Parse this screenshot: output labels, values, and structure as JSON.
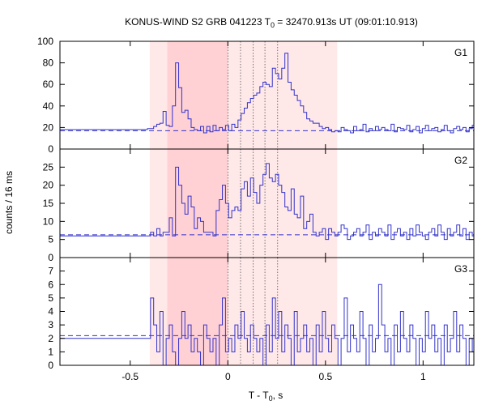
{
  "chart_data": {
    "type": "line",
    "title_prefix": "KONUS-WIND S2 GRB 041223 T",
    "title_sub": "0",
    "title_suffix": " = 32470.913s UT (09:01:10.913)",
    "xlabel_prefix": "T - T",
    "xlabel_sub": "0",
    "xlabel_suffix": ", s",
    "ylabel": "counts / 16 ms",
    "xlim": [
      -0.86,
      1.26
    ],
    "xticks": [
      -0.5,
      0,
      0.5,
      1
    ],
    "xtick_labels": [
      "-0.5",
      "0",
      "0.5",
      "1"
    ],
    "shaded_regions": [
      {
        "from": -0.4,
        "to": 0.56,
        "color": "#ffe8e8"
      },
      {
        "from": -0.31,
        "to": 0.0,
        "color": "#ffd0d4"
      }
    ],
    "vertical_lines_x": [
      0.065,
      0.13,
      0.19,
      0.255
    ],
    "panels": [
      {
        "name": "G1",
        "ylim": [
          0,
          100
        ],
        "yticks": [
          0,
          20,
          40,
          60,
          80,
          100
        ],
        "background_level": 17,
        "step_x0": -0.86,
        "step_dx": 0.016,
        "values": [
          18,
          18,
          18,
          18,
          18,
          18,
          18,
          18,
          18,
          18,
          18,
          18,
          18,
          18,
          18,
          18,
          18,
          18,
          18,
          18,
          18,
          18,
          18,
          18,
          18,
          18,
          18,
          18,
          19,
          19,
          21,
          23,
          24,
          35,
          22,
          21,
          40,
          80,
          57,
          34,
          36,
          28,
          20,
          18,
          17,
          21,
          15,
          21,
          16,
          22,
          17,
          20,
          18,
          22,
          17,
          23,
          20,
          27,
          33,
          38,
          43,
          47,
          50,
          52,
          58,
          62,
          60,
          58,
          75,
          70,
          65,
          75,
          89,
          62,
          55,
          50,
          45,
          40,
          34,
          28,
          26,
          24,
          24,
          21,
          19,
          20,
          18,
          16,
          17,
          16,
          20,
          18,
          17,
          15,
          21,
          17,
          18,
          23,
          16,
          19,
          17,
          21,
          18,
          20,
          18,
          17,
          23,
          16,
          20,
          19,
          18,
          22,
          16,
          18,
          21,
          15,
          19,
          22,
          17,
          19,
          20,
          16,
          18,
          22,
          17,
          15,
          19,
          21,
          18,
          20,
          16,
          19,
          22,
          17,
          18,
          20,
          15,
          19,
          21,
          16,
          18,
          17,
          20,
          19,
          16,
          22
        ]
      },
      {
        "name": "G2",
        "ylim": [
          0,
          30
        ],
        "yticks": [
          0,
          5,
          10,
          15,
          20,
          25
        ],
        "background_level": 6.3,
        "step_x0": -0.86,
        "step_dx": 0.016,
        "values": [
          6,
          6,
          6,
          6,
          6,
          6,
          6,
          6,
          6,
          6,
          6,
          6,
          6,
          6,
          6,
          6,
          6,
          6,
          6,
          6,
          6,
          6,
          6,
          6,
          6,
          6,
          6,
          6,
          6,
          7,
          6,
          8,
          6,
          7,
          7,
          11,
          6,
          25,
          20,
          15,
          12,
          17,
          14,
          8,
          11,
          10,
          7,
          7,
          7,
          6,
          13,
          16,
          20,
          15,
          11,
          13,
          14,
          13,
          19,
          21,
          17,
          22,
          18,
          15,
          20,
          23,
          26,
          22,
          21,
          23,
          20,
          18,
          14,
          13,
          19,
          12,
          11,
          17,
          8,
          10,
          12,
          7,
          6,
          7,
          8,
          5,
          8,
          7,
          6,
          7,
          9,
          8,
          5,
          6,
          7,
          8,
          6,
          7,
          9,
          5,
          7,
          6,
          8,
          7,
          6,
          9,
          5,
          7,
          8,
          6,
          7,
          5,
          8,
          6,
          9,
          7,
          6,
          5,
          7,
          8,
          6,
          9,
          7,
          5,
          8,
          6,
          7,
          9,
          6,
          8,
          5,
          7,
          6,
          8,
          7,
          9,
          6,
          5,
          8,
          7,
          6,
          9
        ]
      },
      {
        "name": "G3",
        "ylim": [
          0,
          8
        ],
        "yticks": [
          0,
          1,
          2,
          3,
          4,
          5,
          6,
          7
        ],
        "background_level": 2.2,
        "step_x0": -0.86,
        "step_dx": 0.016,
        "values": [
          2,
          2,
          2,
          2,
          2,
          2,
          2,
          2,
          2,
          2,
          2,
          2,
          2,
          2,
          2,
          2,
          2,
          2,
          2,
          2,
          2,
          2,
          2,
          2,
          2,
          2,
          2,
          2,
          2,
          5,
          3,
          1,
          4,
          0,
          2,
          3,
          1,
          0,
          2,
          4,
          2,
          3,
          1,
          2,
          1,
          0,
          3,
          2,
          1,
          2,
          0,
          3,
          5,
          1,
          2,
          1,
          3,
          2,
          4,
          2,
          1,
          3,
          2,
          1,
          2,
          0,
          3,
          1,
          5,
          2,
          4,
          1,
          3,
          2,
          0,
          4,
          1,
          2,
          3,
          1,
          2,
          0,
          3,
          1,
          4,
          2,
          1,
          3,
          2,
          0,
          2,
          5,
          1,
          3,
          2,
          1,
          4,
          2,
          0,
          3,
          1,
          2,
          6,
          3,
          1,
          2,
          0,
          3,
          1,
          4,
          2,
          1,
          3,
          2,
          0,
          2,
          1,
          4,
          2,
          3,
          1,
          2,
          0,
          3,
          1,
          2,
          4,
          1,
          3,
          2,
          0,
          2,
          1,
          3,
          2,
          4,
          1,
          2,
          0,
          3,
          2,
          1
        ]
      }
    ]
  }
}
